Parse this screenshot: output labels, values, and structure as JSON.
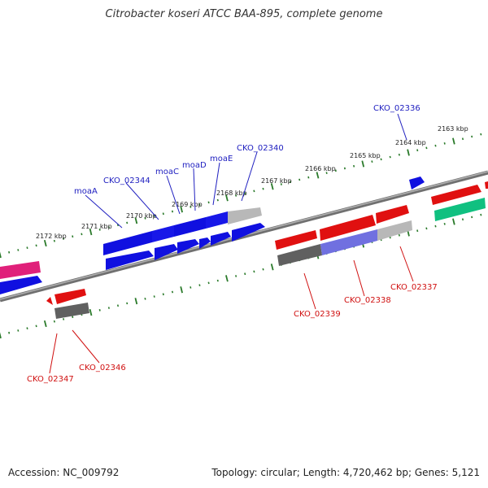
{
  "title": "Citrobacter koseri ATCC BAA-895, complete genome",
  "accession": "Accession: NC_009792",
  "summary": "Topology: circular; Length: 4,720,462 bp; Genes: 5,121",
  "scale_labels": [
    "2163 kbp",
    "2164 kbp",
    "2165 kbp",
    "2166 kbp",
    "2167 kbp",
    "2168 kbp",
    "2169 kbp",
    "2170 kbp",
    "2171 kbp",
    "2172 kbp"
  ],
  "top_gene_labels": [
    "CKO_02336",
    "CKO_02340",
    "moaE",
    "moaD",
    "moaC",
    "CKO_02344",
    "moaA"
  ],
  "bottom_gene_labels": [
    "CKO_02337",
    "CKO_02338",
    "CKO_02339",
    "CKO_02346",
    "CKO_02347"
  ],
  "colors": {
    "blue": "#1010e0",
    "red": "#e01010",
    "pink": "#e0207a",
    "green": "#10c080",
    "grey": "#707070",
    "lightgrey": "#b8b8b8",
    "violet": "#7070e0",
    "scale": "#2a7a2a",
    "backbone": "#808080",
    "label_blue": "#2020c0",
    "label_red": "#d01010"
  }
}
